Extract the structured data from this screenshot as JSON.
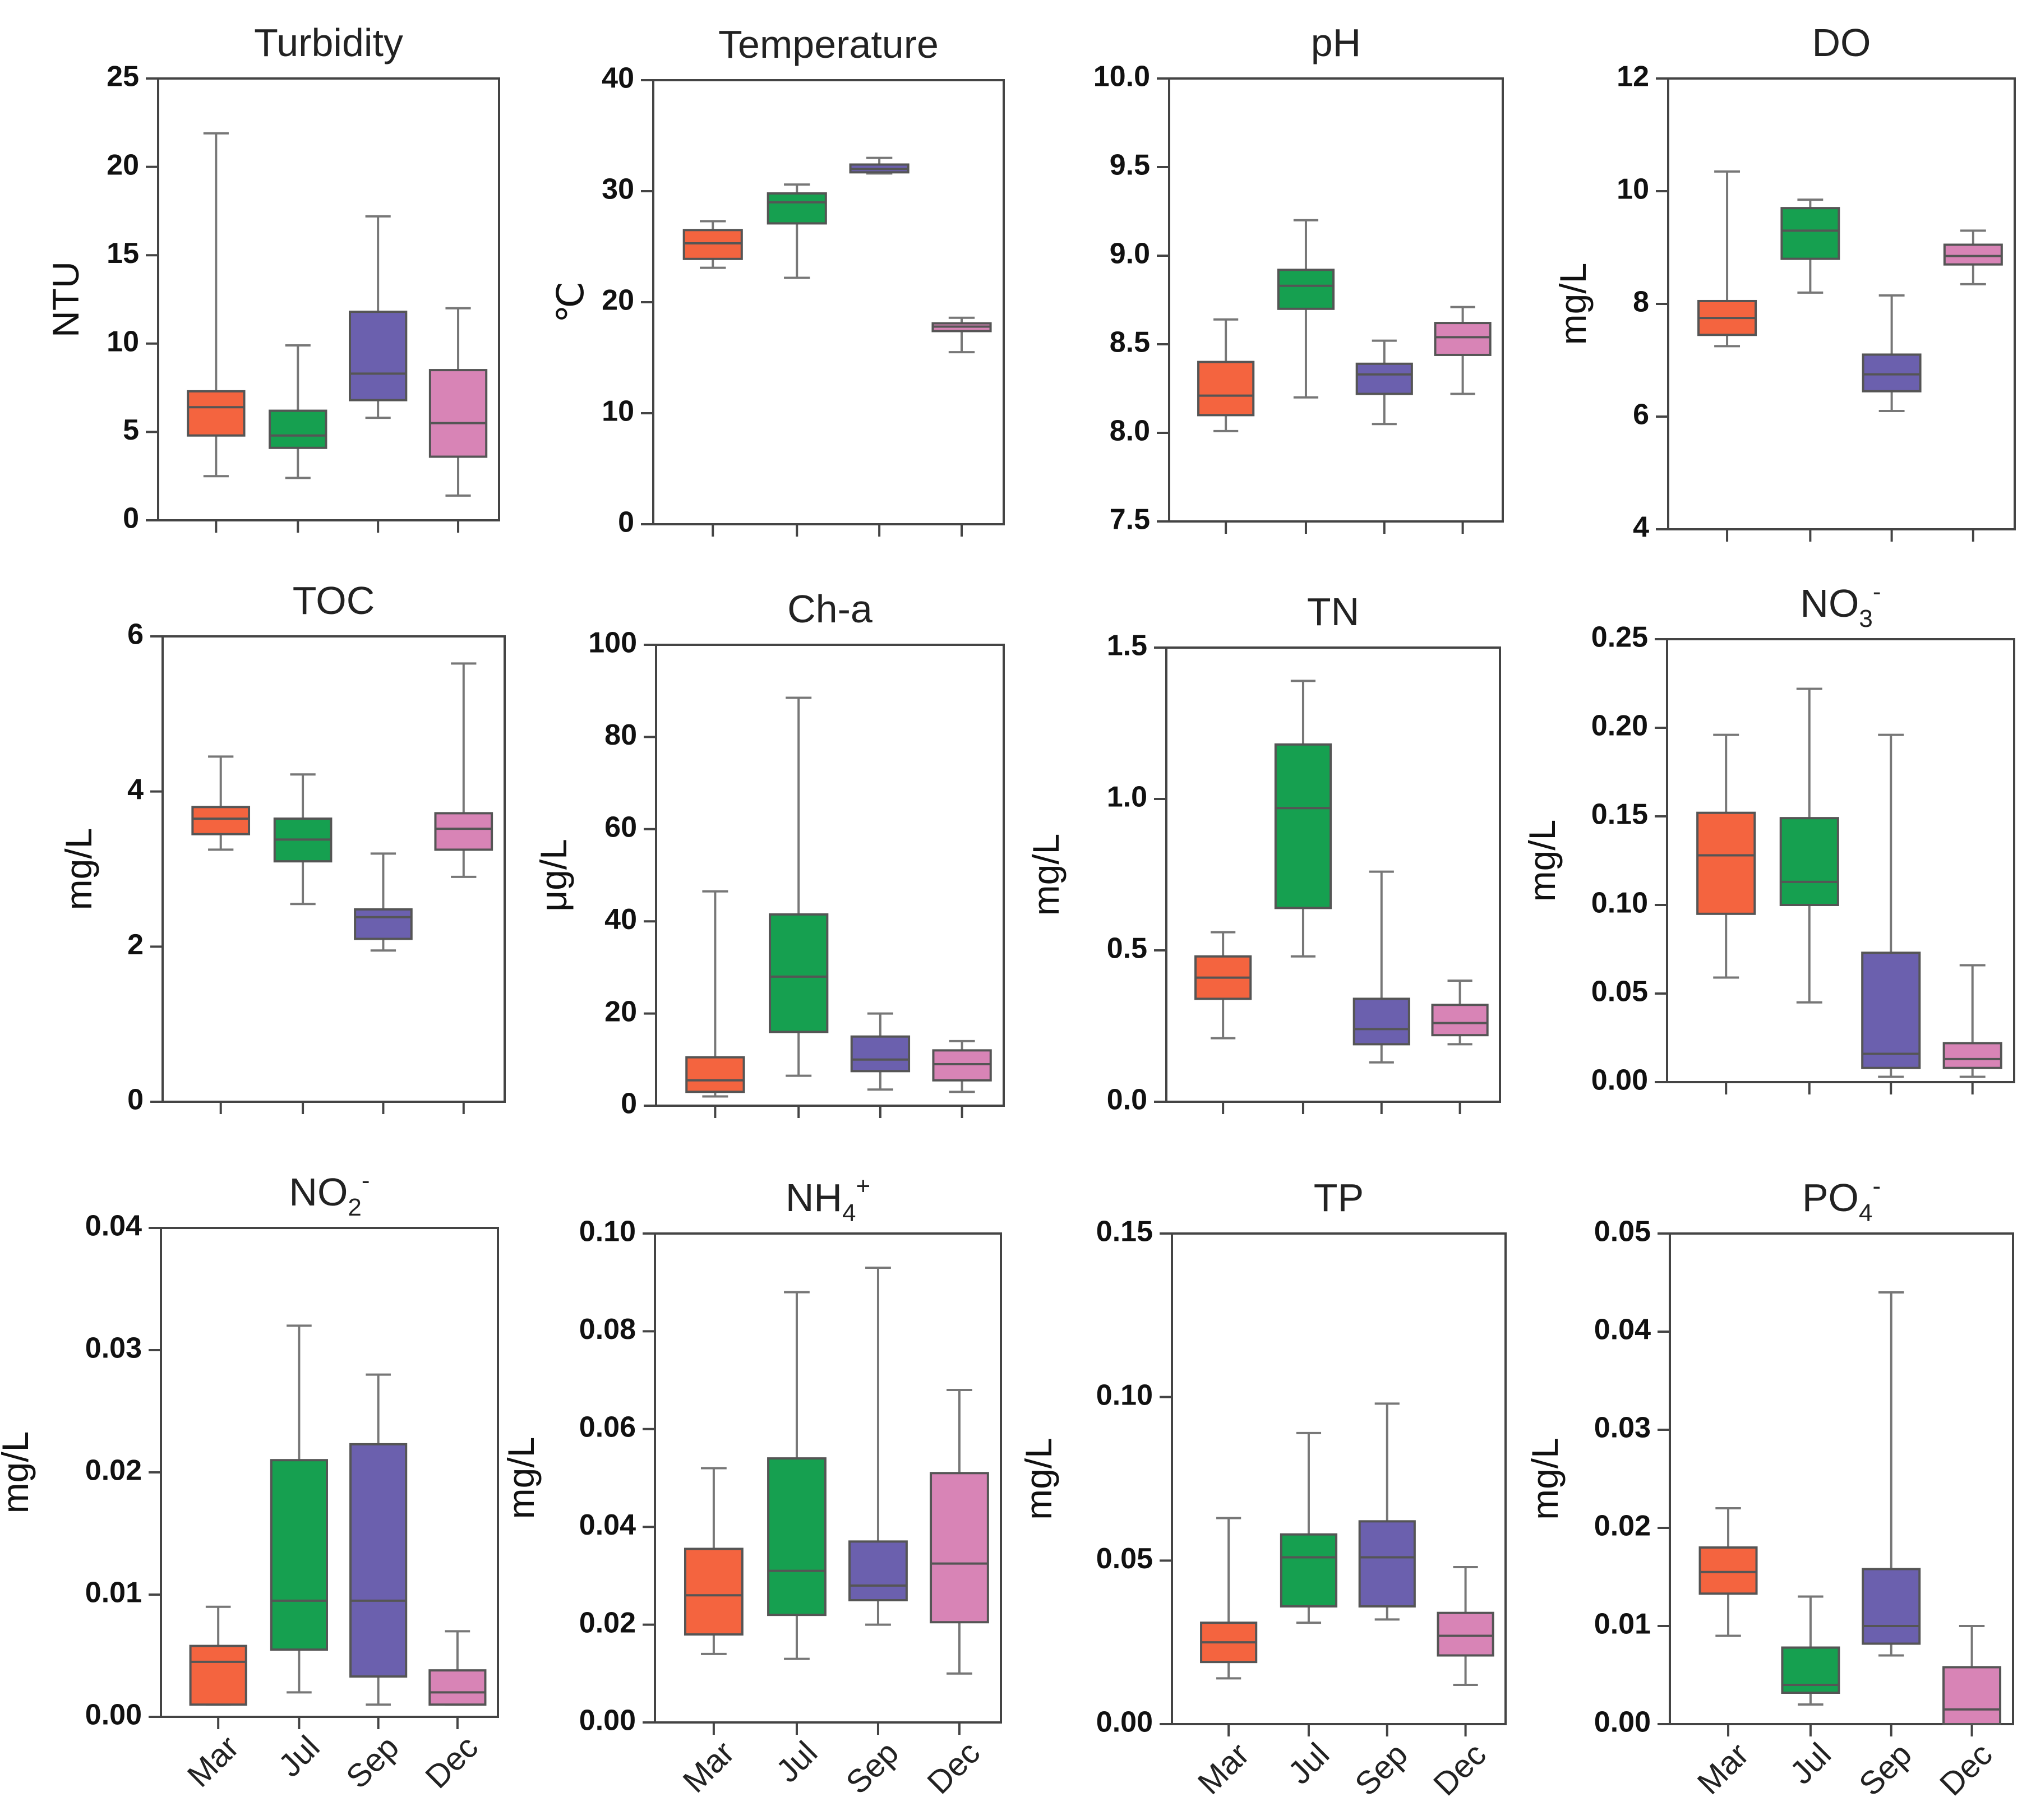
{
  "colors": {
    "Mar": "#F4643F",
    "Jul": "#16A050",
    "Sep": "#6B60AE",
    "Dec": "#D884B6"
  },
  "chart_data": [
    {
      "type": "box",
      "title": "Turbidity",
      "sub": "",
      "sup": "",
      "ylabel": "NTU",
      "ylim": [
        0,
        25
      ],
      "yticks": [
        "0",
        "5",
        "10",
        "15",
        "20",
        "25"
      ],
      "yticks_v": [
        0,
        5,
        10,
        15,
        20,
        25
      ],
      "categories": [
        "Mar",
        "Jul",
        "Sep",
        "Dec"
      ],
      "boxes": [
        {
          "min": 2.5,
          "q1": 4.8,
          "median": 6.4,
          "q3": 7.3,
          "max": 21.9
        },
        {
          "min": 2.4,
          "q1": 4.1,
          "median": 4.8,
          "q3": 6.2,
          "max": 9.9
        },
        {
          "min": 5.8,
          "q1": 6.8,
          "median": 8.3,
          "q3": 11.8,
          "max": 17.2
        },
        {
          "min": 1.4,
          "q1": 3.6,
          "median": 5.5,
          "q3": 8.5,
          "max": 12.0
        }
      ]
    },
    {
      "type": "box",
      "title": "Temperature",
      "sub": "",
      "sup": "",
      "ylabel": "℃",
      "ylim": [
        0,
        40
      ],
      "yticks": [
        "0",
        "10",
        "20",
        "30",
        "40"
      ],
      "yticks_v": [
        0,
        10,
        20,
        30,
        40
      ],
      "categories": [
        "Mar",
        "Jul",
        "Sep",
        "Dec"
      ],
      "boxes": [
        {
          "min": 23.1,
          "q1": 23.9,
          "median": 25.3,
          "q3": 26.5,
          "max": 27.3
        },
        {
          "min": 22.2,
          "q1": 27.1,
          "median": 29.0,
          "q3": 29.8,
          "max": 30.6
        },
        {
          "min": 31.6,
          "q1": 31.7,
          "median": 32.0,
          "q3": 32.4,
          "max": 33.0
        },
        {
          "min": 15.5,
          "q1": 17.4,
          "median": 17.8,
          "q3": 18.1,
          "max": 18.6
        }
      ]
    },
    {
      "type": "box",
      "title": "pH",
      "sub": "",
      "sup": "",
      "ylabel": "",
      "ylim": [
        7.5,
        10.0
      ],
      "yticks": [
        "7.5",
        "8.0",
        "8.5",
        "9.0",
        "9.5",
        "10.0"
      ],
      "yticks_v": [
        7.5,
        8.0,
        8.5,
        9.0,
        9.5,
        10.0
      ],
      "categories": [
        "Mar",
        "Jul",
        "Sep",
        "Dec"
      ],
      "boxes": [
        {
          "min": 8.01,
          "q1": 8.1,
          "median": 8.21,
          "q3": 8.4,
          "max": 8.64
        },
        {
          "min": 8.2,
          "q1": 8.7,
          "median": 8.83,
          "q3": 8.92,
          "max": 9.2
        },
        {
          "min": 8.05,
          "q1": 8.22,
          "median": 8.33,
          "q3": 8.39,
          "max": 8.52
        },
        {
          "min": 8.22,
          "q1": 8.44,
          "median": 8.54,
          "q3": 8.62,
          "max": 8.71
        }
      ]
    },
    {
      "type": "box",
      "title": "DO",
      "sub": "",
      "sup": "",
      "ylabel": "mg/L",
      "ylim": [
        4,
        12
      ],
      "yticks": [
        "4",
        "6",
        "8",
        "10",
        "12"
      ],
      "yticks_v": [
        4,
        6,
        8,
        10,
        12
      ],
      "categories": [
        "Mar",
        "Jul",
        "Sep",
        "Dec"
      ],
      "boxes": [
        {
          "min": 7.25,
          "q1": 7.45,
          "median": 7.75,
          "q3": 8.05,
          "max": 10.35
        },
        {
          "min": 8.2,
          "q1": 8.8,
          "median": 9.3,
          "q3": 9.7,
          "max": 9.85
        },
        {
          "min": 6.1,
          "q1": 6.45,
          "median": 6.75,
          "q3": 7.1,
          "max": 8.15
        },
        {
          "min": 8.35,
          "q1": 8.7,
          "median": 8.85,
          "q3": 9.05,
          "max": 9.3
        }
      ]
    },
    {
      "type": "box",
      "title": "TOC",
      "sub": "",
      "sup": "",
      "ylabel": "mg/L",
      "ylim": [
        0,
        6
      ],
      "yticks": [
        "0",
        "2",
        "4",
        "6"
      ],
      "yticks_v": [
        0,
        2,
        4,
        6
      ],
      "categories": [
        "Mar",
        "Jul",
        "Sep",
        "Dec"
      ],
      "boxes": [
        {
          "min": 3.25,
          "q1": 3.45,
          "median": 3.65,
          "q3": 3.8,
          "max": 4.45
        },
        {
          "min": 2.55,
          "q1": 3.1,
          "median": 3.38,
          "q3": 3.65,
          "max": 4.22
        },
        {
          "min": 1.95,
          "q1": 2.1,
          "median": 2.38,
          "q3": 2.48,
          "max": 3.2
        },
        {
          "min": 2.9,
          "q1": 3.25,
          "median": 3.52,
          "q3": 3.72,
          "max": 5.65
        }
      ]
    },
    {
      "type": "box",
      "title": "Ch-a",
      "sub": "",
      "sup": "",
      "ylabel": "μg/L",
      "ylim": [
        0,
        100
      ],
      "yticks": [
        "0",
        "20",
        "40",
        "60",
        "80",
        "100"
      ],
      "yticks_v": [
        0,
        20,
        40,
        60,
        80,
        100
      ],
      "categories": [
        "Mar",
        "Jul",
        "Sep",
        "Dec"
      ],
      "boxes": [
        {
          "min": 2.0,
          "q1": 3.0,
          "median": 5.5,
          "q3": 10.5,
          "max": 46.5
        },
        {
          "min": 6.5,
          "q1": 16.0,
          "median": 28.0,
          "q3": 41.5,
          "max": 88.5
        },
        {
          "min": 3.5,
          "q1": 7.5,
          "median": 10.0,
          "q3": 15.0,
          "max": 20.0
        },
        {
          "min": 3.0,
          "q1": 5.5,
          "median": 9.0,
          "q3": 12.0,
          "max": 14.0
        }
      ]
    },
    {
      "type": "box",
      "title": "TN",
      "sub": "",
      "sup": "",
      "ylabel": "mg/L",
      "ylim": [
        0,
        1.5
      ],
      "yticks": [
        "0.0",
        "0.5",
        "1.0",
        "1.5"
      ],
      "yticks_v": [
        0,
        0.5,
        1.0,
        1.5
      ],
      "categories": [
        "Mar",
        "Jul",
        "Sep",
        "Dec"
      ],
      "boxes": [
        {
          "min": 0.21,
          "q1": 0.34,
          "median": 0.41,
          "q3": 0.48,
          "max": 0.56
        },
        {
          "min": 0.48,
          "q1": 0.64,
          "median": 0.97,
          "q3": 1.18,
          "max": 1.39
        },
        {
          "min": 0.13,
          "q1": 0.19,
          "median": 0.24,
          "q3": 0.34,
          "max": 0.76
        },
        {
          "min": 0.19,
          "q1": 0.22,
          "median": 0.26,
          "q3": 0.32,
          "max": 0.4
        }
      ]
    },
    {
      "type": "box",
      "title": "NO",
      "sub": "3",
      "sup": "-",
      "ylabel": "mg/L",
      "ylim": [
        0,
        0.25
      ],
      "yticks": [
        "0.00",
        "0.05",
        "0.10",
        "0.15",
        "0.20",
        "0.25"
      ],
      "yticks_v": [
        0,
        0.05,
        0.1,
        0.15,
        0.2,
        0.25
      ],
      "categories": [
        "Mar",
        "Jul",
        "Sep",
        "Dec"
      ],
      "boxes": [
        {
          "min": 0.059,
          "q1": 0.095,
          "median": 0.128,
          "q3": 0.152,
          "max": 0.196
        },
        {
          "min": 0.045,
          "q1": 0.1,
          "median": 0.113,
          "q3": 0.149,
          "max": 0.222
        },
        {
          "min": 0.003,
          "q1": 0.008,
          "median": 0.016,
          "q3": 0.073,
          "max": 0.196
        },
        {
          "min": 0.003,
          "q1": 0.008,
          "median": 0.013,
          "q3": 0.022,
          "max": 0.066
        }
      ]
    },
    {
      "type": "box",
      "title": "NO",
      "sub": "2",
      "sup": "-",
      "ylabel": "mg/L",
      "ylim": [
        0,
        0.04
      ],
      "yticks": [
        "0.00",
        "0.01",
        "0.02",
        "0.03",
        "0.04"
      ],
      "yticks_v": [
        0,
        0.01,
        0.02,
        0.03,
        0.04
      ],
      "categories": [
        "Mar",
        "Jul",
        "Sep",
        "Dec"
      ],
      "boxes": [
        {
          "min": 0.001,
          "q1": 0.001,
          "median": 0.0045,
          "q3": 0.0058,
          "max": 0.009
        },
        {
          "min": 0.002,
          "q1": 0.0055,
          "median": 0.0095,
          "q3": 0.021,
          "max": 0.032
        },
        {
          "min": 0.001,
          "q1": 0.0033,
          "median": 0.0095,
          "q3": 0.0223,
          "max": 0.028
        },
        {
          "min": 0.001,
          "q1": 0.001,
          "median": 0.002,
          "q3": 0.0038,
          "max": 0.007
        }
      ]
    },
    {
      "type": "box",
      "title": "NH",
      "sub": "4",
      "sup": "+",
      "ylabel": "mg/L",
      "ylim": [
        0,
        0.1
      ],
      "yticks": [
        "0.00",
        "0.02",
        "0.04",
        "0.06",
        "0.08",
        "0.10"
      ],
      "yticks_v": [
        0,
        0.02,
        0.04,
        0.06,
        0.08,
        0.1
      ],
      "categories": [
        "Mar",
        "Jul",
        "Sep",
        "Dec"
      ],
      "boxes": [
        {
          "min": 0.014,
          "q1": 0.018,
          "median": 0.026,
          "q3": 0.0355,
          "max": 0.052
        },
        {
          "min": 0.013,
          "q1": 0.022,
          "median": 0.031,
          "q3": 0.054,
          "max": 0.088
        },
        {
          "min": 0.02,
          "q1": 0.025,
          "median": 0.028,
          "q3": 0.037,
          "max": 0.093
        },
        {
          "min": 0.01,
          "q1": 0.0205,
          "median": 0.0325,
          "q3": 0.051,
          "max": 0.068
        }
      ]
    },
    {
      "type": "box",
      "title": "TP",
      "sub": "",
      "sup": "",
      "ylabel": "mg/L",
      "ylim": [
        0,
        0.15
      ],
      "yticks": [
        "0.00",
        "0.05",
        "0.10",
        "0.15"
      ],
      "yticks_v": [
        0,
        0.05,
        0.1,
        0.15
      ],
      "categories": [
        "Mar",
        "Jul",
        "Sep",
        "Dec"
      ],
      "boxes": [
        {
          "min": 0.014,
          "q1": 0.019,
          "median": 0.025,
          "q3": 0.031,
          "max": 0.063
        },
        {
          "min": 0.031,
          "q1": 0.036,
          "median": 0.051,
          "q3": 0.058,
          "max": 0.089
        },
        {
          "min": 0.032,
          "q1": 0.036,
          "median": 0.051,
          "q3": 0.062,
          "max": 0.098
        },
        {
          "min": 0.012,
          "q1": 0.021,
          "median": 0.027,
          "q3": 0.034,
          "max": 0.048
        }
      ]
    },
    {
      "type": "box",
      "title": "PO",
      "sub": "4",
      "sup": "-",
      "ylabel": "mg/L",
      "ylim": [
        0,
        0.05
      ],
      "yticks": [
        "0.00",
        "0.01",
        "0.02",
        "0.03",
        "0.04",
        "0.05"
      ],
      "yticks_v": [
        0,
        0.01,
        0.02,
        0.03,
        0.04,
        0.05
      ],
      "categories": [
        "Mar",
        "Jul",
        "Sep",
        "Dec"
      ],
      "boxes": [
        {
          "min": 0.009,
          "q1": 0.0133,
          "median": 0.0155,
          "q3": 0.018,
          "max": 0.022
        },
        {
          "min": 0.002,
          "q1": 0.0032,
          "median": 0.004,
          "q3": 0.0078,
          "max": 0.013
        },
        {
          "min": 0.007,
          "q1": 0.0082,
          "median": 0.01,
          "q3": 0.0158,
          "max": 0.044
        },
        {
          "min": 0.0,
          "q1": 0.0,
          "median": 0.0015,
          "q3": 0.0058,
          "max": 0.01
        }
      ]
    }
  ]
}
